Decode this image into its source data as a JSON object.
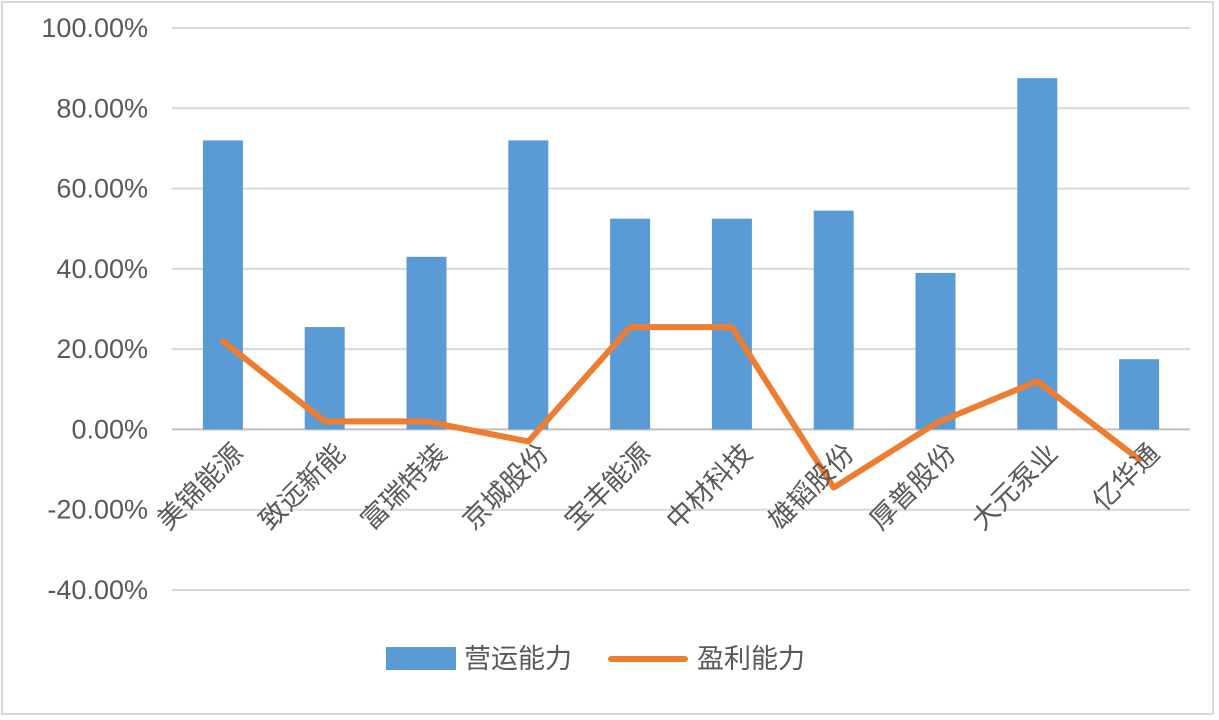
{
  "chart_data": {
    "type": "bar",
    "categories": [
      "美锦能源",
      "致远新能",
      "富瑞特装",
      "京城股份",
      "宝丰能源",
      "中材科技",
      "雄韬股份",
      "厚普股份",
      "大元泵业",
      "亿华通"
    ],
    "ylim": [
      -0.4,
      1.0
    ],
    "yticks": [
      {
        "value": 1.0,
        "label": "100.00%"
      },
      {
        "value": 0.8,
        "label": "80.00%"
      },
      {
        "value": 0.6,
        "label": "60.00%"
      },
      {
        "value": 0.4,
        "label": "40.00%"
      },
      {
        "value": 0.2,
        "label": "20.00%"
      },
      {
        "value": 0.0,
        "label": "0.00%"
      },
      {
        "value": -0.2,
        "label": "-20.00%"
      },
      {
        "value": -0.4,
        "label": "-40.00%"
      }
    ],
    "grid": true,
    "legend_position": "bottom",
    "series": [
      {
        "name": "营运能力",
        "type": "bar",
        "color": "#5b9bd5",
        "values": [
          0.72,
          0.255,
          0.43,
          0.72,
          0.525,
          0.525,
          0.545,
          0.39,
          0.875,
          0.175
        ]
      },
      {
        "name": "盈利能力",
        "type": "line",
        "color": "#ed7d31",
        "values": [
          0.22,
          0.02,
          0.02,
          -0.03,
          0.255,
          0.255,
          -0.145,
          0.015,
          0.12,
          -0.075
        ]
      }
    ]
  }
}
